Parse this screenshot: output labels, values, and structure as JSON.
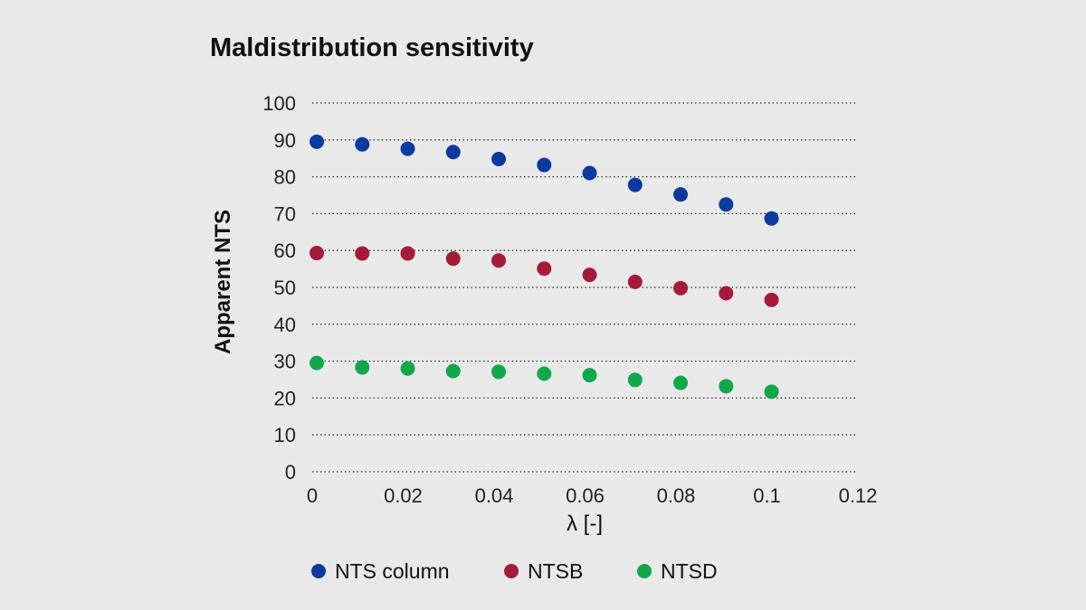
{
  "chart_data": {
    "type": "scatter",
    "title": "Maldistribution sensitivity",
    "xlabel": "λ [-]",
    "ylabel": "Apparent NTS",
    "xlim": [
      0,
      0.12
    ],
    "ylim": [
      0,
      100
    ],
    "xticks": [
      "0",
      "0.02",
      "0.04",
      "0.06",
      "0.08",
      "0.1",
      "0.12"
    ],
    "yticks": [
      "0",
      "10",
      "20",
      "30",
      "40",
      "50",
      "60",
      "70",
      "80",
      "90",
      "100"
    ],
    "grid": "horizontal dotted",
    "legend_position": "bottom",
    "x": [
      0.001,
      0.011,
      0.021,
      0.031,
      0.041,
      0.051,
      0.061,
      0.071,
      0.081,
      0.091,
      0.101
    ],
    "series": [
      {
        "name": "NTS column",
        "color": "#0d3aa0",
        "values": [
          89.5,
          88.8,
          87.6,
          86.7,
          84.8,
          83.2,
          81.0,
          77.8,
          75.2,
          72.5,
          68.7
        ]
      },
      {
        "name": "NTSB",
        "color": "#a61c38",
        "values": [
          59.3,
          59.2,
          59.2,
          57.8,
          57.3,
          55.1,
          53.4,
          51.5,
          49.8,
          48.4,
          46.6
        ]
      },
      {
        "name": "NTSD",
        "color": "#11a84a",
        "values": [
          29.5,
          28.3,
          28.0,
          27.3,
          27.1,
          26.6,
          26.2,
          24.9,
          24.1,
          23.2,
          21.7
        ]
      }
    ]
  }
}
